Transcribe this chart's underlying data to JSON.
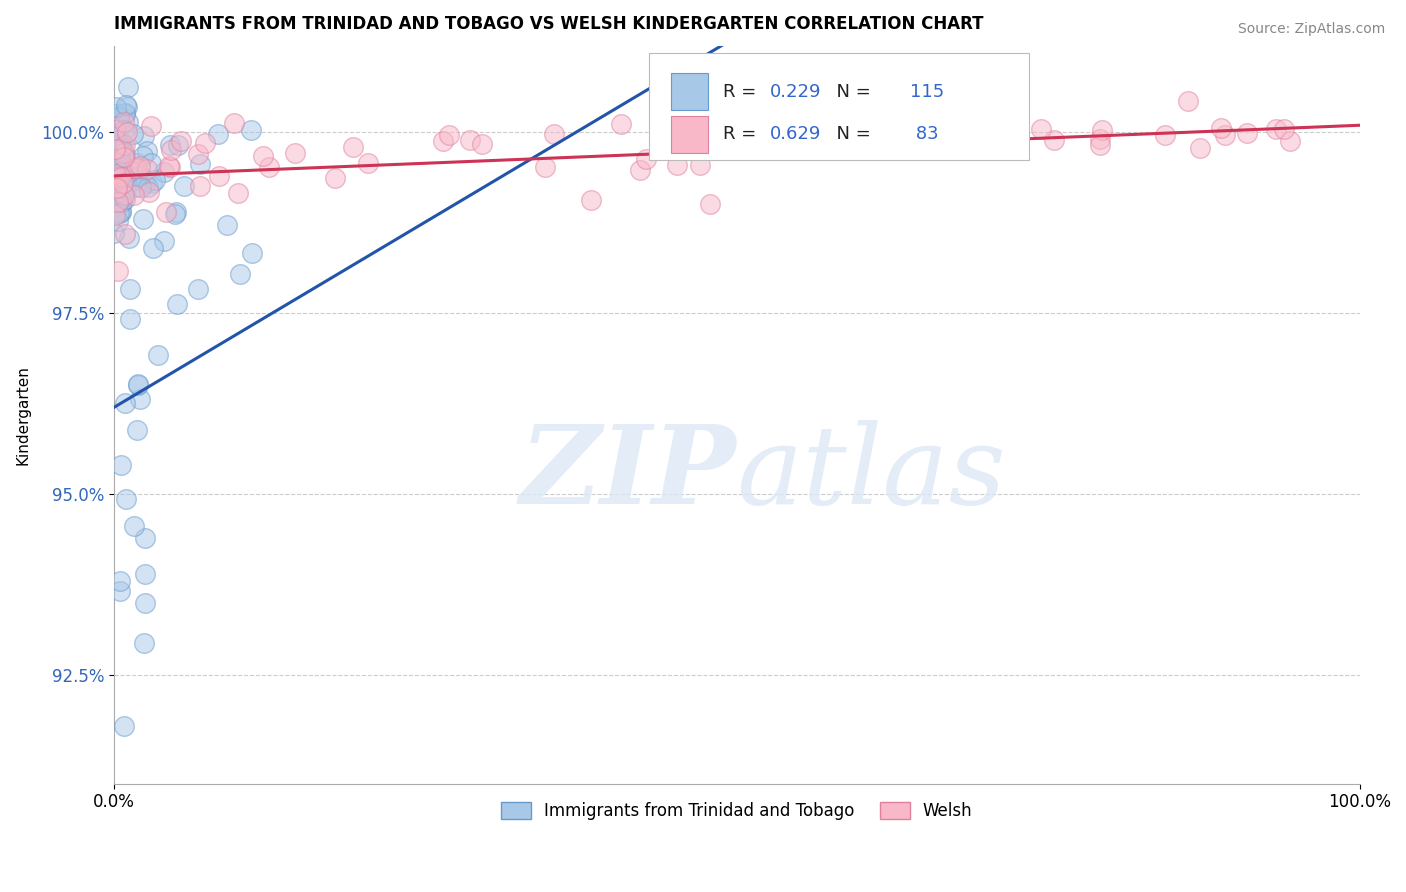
{
  "title": "IMMIGRANTS FROM TRINIDAD AND TOBAGO VS WELSH KINDERGARTEN CORRELATION CHART",
  "source": "Source: ZipAtlas.com",
  "xlabel": "",
  "ylabel": "Kindergarten",
  "xmin": 0.0,
  "xmax": 100.0,
  "ymin": 91.0,
  "ymax": 101.2,
  "yticks": [
    92.5,
    95.0,
    97.5,
    100.0
  ],
  "ytick_labels": [
    "92.5%",
    "95.0%",
    "97.5%",
    "100.0%"
  ],
  "xticks": [
    0.0,
    100.0
  ],
  "xtick_labels": [
    "0.0%",
    "100.0%"
  ],
  "blue_color": "#a8c8e8",
  "blue_edge": "#6699cc",
  "pink_color": "#f8b8c8",
  "pink_edge": "#e080a0",
  "blue_line_color": "#2255aa",
  "pink_line_color": "#cc3355",
  "R_blue": 0.229,
  "N_blue": 115,
  "R_pink": 0.629,
  "N_pink": 83,
  "watermark_zip": "ZIP",
  "watermark_atlas": "atlas",
  "legend_label_blue": "Immigrants from Trinidad and Tobago",
  "legend_label_pink": "Welsh",
  "title_fontsize": 12,
  "source_fontsize": 10,
  "blue_trend_start_y": 96.2,
  "blue_trend_end_y": 100.3,
  "pink_trend_start_y": 99.4,
  "pink_trend_end_y": 100.1
}
